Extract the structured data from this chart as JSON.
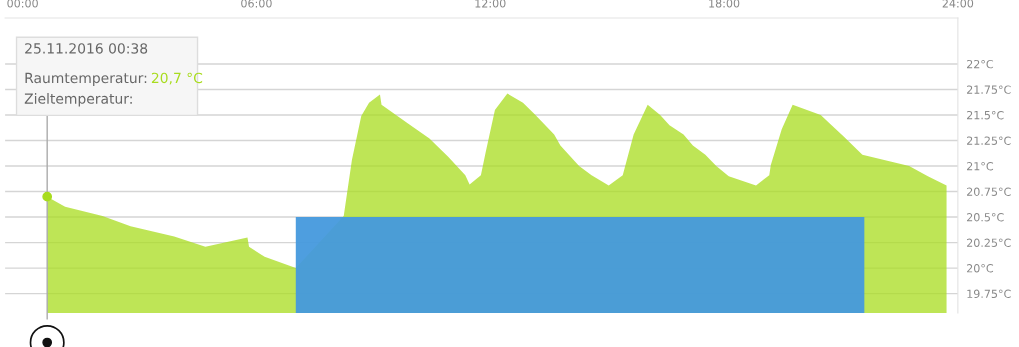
{
  "chart_data": {
    "type": "area",
    "xlim": [
      -0.45,
      24.0
    ],
    "xticks": [
      {
        "value": 0,
        "label": "00:00"
      },
      {
        "value": 6,
        "label": "06:00"
      },
      {
        "value": 12,
        "label": "12:00"
      },
      {
        "value": 18,
        "label": "18:00"
      },
      {
        "value": 24,
        "label": "24:00"
      }
    ],
    "ylim": [
      19.56,
      22.45
    ],
    "yticks": [
      {
        "value": 19.75,
        "label": "19.75°C"
      },
      {
        "value": 20,
        "label": "20°C"
      },
      {
        "value": 20.25,
        "label": "20.25°C"
      },
      {
        "value": 20.5,
        "label": "20.5°C"
      },
      {
        "value": 20.75,
        "label": "20.75°C"
      },
      {
        "value": 21,
        "label": "21°C"
      },
      {
        "value": 21.25,
        "label": "21.25°C"
      },
      {
        "value": 21.5,
        "label": "21.5°C"
      },
      {
        "value": 21.75,
        "label": "21.75°C"
      },
      {
        "value": 22,
        "label": "22°C"
      }
    ],
    "grid": "y",
    "series": [
      {
        "color": "#a8dc1e",
        "x": [
          0.63,
          1.09,
          2.05,
          2.77,
          3.89,
          4.69,
          5.77,
          5.81,
          6.21,
          7.01,
          8.24,
          8.45,
          8.69,
          8.89,
          9.17,
          9.21,
          9.88,
          10.44,
          10.92,
          11.36,
          11.47,
          11.76,
          11.88,
          12.12,
          12.44,
          12.84,
          13.16,
          13.64,
          13.8,
          14.28,
          14.6,
          15.04,
          15.4,
          15.68,
          16.04,
          16.36,
          16.6,
          16.96,
          17.2,
          17.52,
          17.8,
          18.12,
          18.82,
          19.16,
          19.2,
          19.48,
          19.76,
          20.48,
          20.76,
          21.07,
          21.55,
          22.75,
          23.23,
          23.71
        ],
        "values": [
          20.7,
          20.6,
          20.51,
          20.41,
          20.31,
          20.21,
          20.3,
          20.21,
          20.11,
          20.0,
          20.51,
          21.06,
          21.49,
          21.62,
          21.7,
          21.6,
          21.42,
          21.27,
          21.09,
          20.91,
          20.82,
          20.91,
          21.13,
          21.55,
          21.71,
          21.62,
          21.5,
          21.31,
          21.2,
          21.0,
          20.91,
          20.81,
          20.91,
          21.31,
          21.6,
          21.5,
          21.4,
          21.31,
          21.2,
          21.11,
          21.0,
          20.9,
          20.81,
          20.91,
          21.01,
          21.36,
          21.6,
          21.5,
          21.4,
          21.29,
          21.11,
          21.0,
          20.9,
          20.81
        ]
      },
      {
        "color": "#4499dd",
        "x": [
          7.01,
          21.6
        ],
        "values": [
          20.5,
          20.5
        ]
      }
    ],
    "ref_lines": [
      {
        "axis": "x",
        "value": 0.63,
        "color": "#aaaaaa"
      }
    ],
    "annotations": [
      "25.11.2016 00:38",
      "Raumtemperatur:",
      "20,7 °C",
      "Zieltemperatur:"
    ]
  }
}
